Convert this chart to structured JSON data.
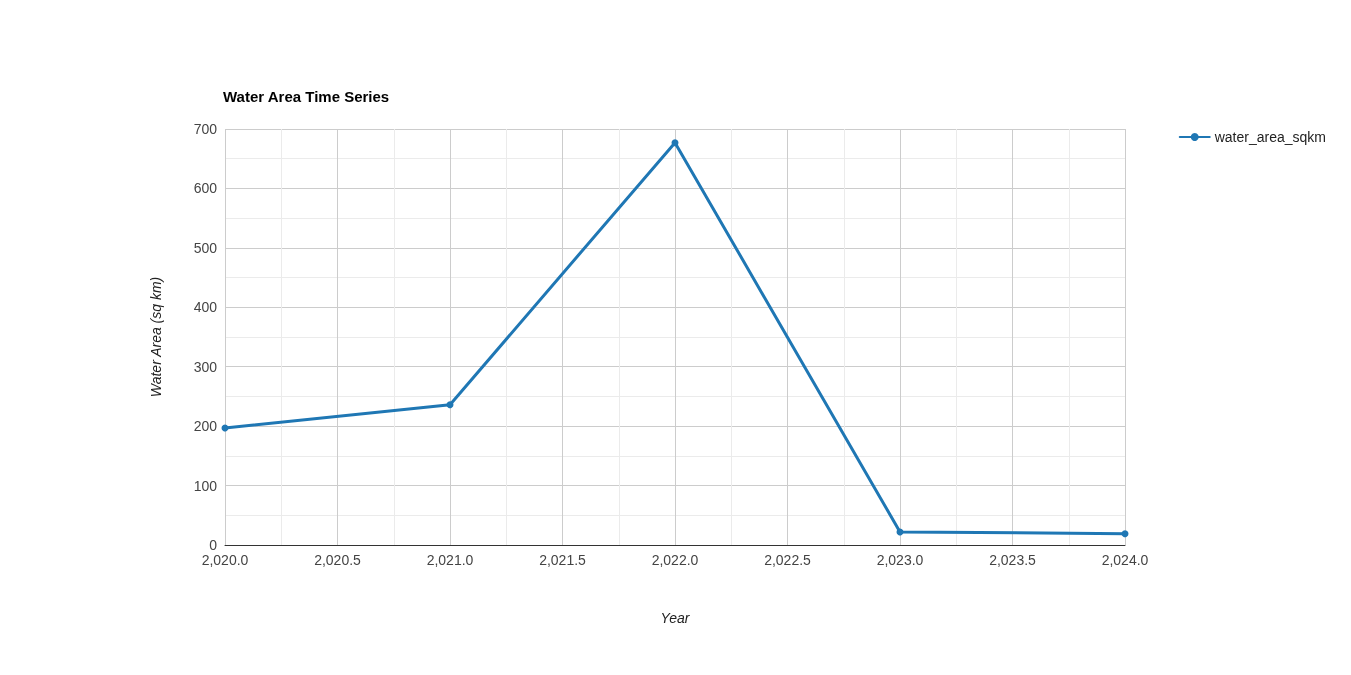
{
  "chart_data": {
    "type": "line",
    "title": "Water Area Time Series",
    "xlabel": "Year",
    "ylabel": "Water Area (sq km)",
    "x": [
      2020,
      2021,
      2022,
      2023,
      2024
    ],
    "series": [
      {
        "name": "water_area_sqkm",
        "color": "#1f77b4",
        "values": [
          197,
          236,
          677,
          22,
          19
        ]
      }
    ],
    "xlim": [
      2020,
      2024
    ],
    "xticks": [
      {
        "value": 2020,
        "label": "2,020.0"
      },
      {
        "value": 2020.5,
        "label": "2,020.5"
      },
      {
        "value": 2021,
        "label": "2,021.0"
      },
      {
        "value": 2021.5,
        "label": "2,021.5"
      },
      {
        "value": 2022,
        "label": "2,022.0"
      },
      {
        "value": 2022.5,
        "label": "2,022.5"
      },
      {
        "value": 2023,
        "label": "2,023.0"
      },
      {
        "value": 2023.5,
        "label": "2,023.5"
      },
      {
        "value": 2024,
        "label": "2,024.0"
      }
    ],
    "ylim": [
      0,
      700
    ],
    "yticks": [
      0,
      100,
      200,
      300,
      400,
      500,
      600,
      700
    ],
    "grid": true,
    "legend": "top right",
    "marker": "circle",
    "line_style": "solid"
  }
}
